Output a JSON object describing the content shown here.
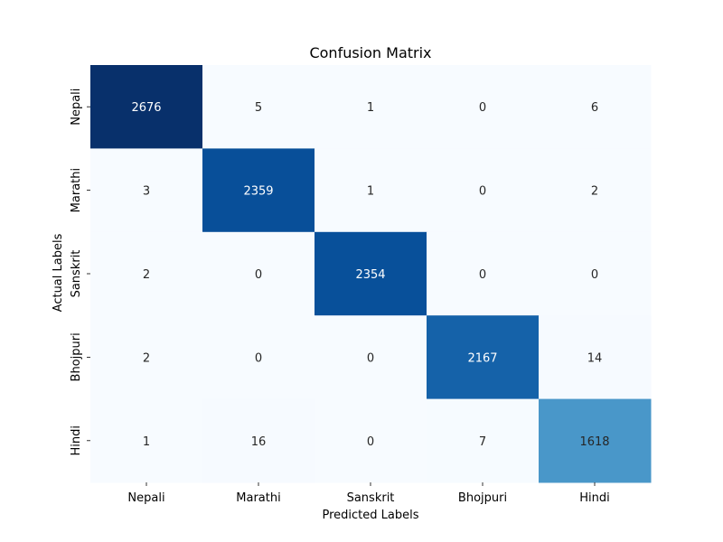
{
  "chart_data": {
    "type": "heatmap",
    "title": "Confusion Matrix",
    "xlabel": "Predicted Labels",
    "ylabel": "Actual Labels",
    "x_categories": [
      "Nepali",
      "Marathi",
      "Sanskrit",
      "Bhojpuri",
      "Hindi"
    ],
    "y_categories": [
      "Nepali",
      "Marathi",
      "Sanskrit",
      "Bhojpuri",
      "Hindi"
    ],
    "values": [
      [
        2676,
        5,
        1,
        0,
        6
      ],
      [
        3,
        2359,
        1,
        0,
        2
      ],
      [
        2,
        0,
        2354,
        0,
        0
      ],
      [
        2,
        0,
        0,
        2167,
        14
      ],
      [
        1,
        16,
        0,
        7,
        1618
      ]
    ],
    "colormap": "Blues",
    "annotated": true,
    "colorbar": false,
    "grid": false
  }
}
